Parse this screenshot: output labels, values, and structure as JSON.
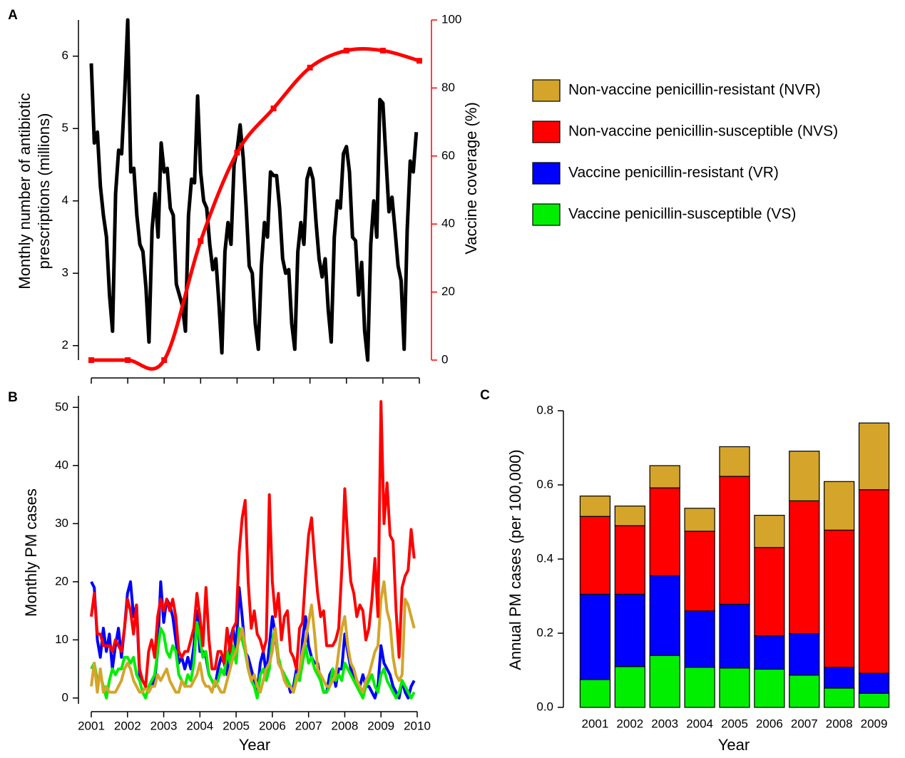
{
  "chart_data": [
    {
      "type": "line",
      "panel": "A",
      "ylabel": [
        "Monthly number of antibiotic",
        "prescriptions (millions)"
      ],
      "y2label": "Vaccine coverage (%)",
      "xlim": [
        2001,
        2010
      ],
      "xticks": [
        2001,
        2002,
        2003,
        2004,
        2005,
        2006,
        2007,
        2008,
        2009,
        2010
      ],
      "show_xtick_labels": false,
      "ylim": [
        1.8,
        6.5
      ],
      "yticks": [
        2,
        3,
        4,
        5,
        6
      ],
      "y2lim": [
        0,
        100
      ],
      "y2ticks": [
        0,
        20,
        40,
        60,
        80,
        100
      ],
      "x": [
        2001,
        2001.083,
        2001.167,
        2001.25,
        2001.333,
        2001.417,
        2001.5,
        2001.583,
        2001.667,
        2001.75,
        2001.833,
        2001.917,
        2002,
        2002.083,
        2002.167,
        2002.25,
        2002.333,
        2002.417,
        2002.5,
        2002.583,
        2002.667,
        2002.75,
        2002.833,
        2002.917,
        2003,
        2003.083,
        2003.167,
        2003.25,
        2003.333,
        2003.417,
        2003.5,
        2003.583,
        2003.667,
        2003.75,
        2003.833,
        2003.917,
        2004,
        2004.083,
        2004.167,
        2004.25,
        2004.333,
        2004.417,
        2004.5,
        2004.583,
        2004.667,
        2004.75,
        2004.833,
        2004.917,
        2005,
        2005.083,
        2005.167,
        2005.25,
        2005.333,
        2005.417,
        2005.5,
        2005.583,
        2005.667,
        2005.75,
        2005.833,
        2005.917,
        2006,
        2006.083,
        2006.167,
        2006.25,
        2006.333,
        2006.417,
        2006.5,
        2006.583,
        2006.667,
        2006.75,
        2006.833,
        2006.917,
        2007,
        2007.083,
        2007.167,
        2007.25,
        2007.333,
        2007.417,
        2007.5,
        2007.583,
        2007.667,
        2007.75,
        2007.833,
        2007.917,
        2008,
        2008.083,
        2008.167,
        2008.25,
        2008.333,
        2008.417,
        2008.5,
        2008.583,
        2008.667,
        2008.75,
        2008.833,
        2008.917,
        2009,
        2009.083,
        2009.167,
        2009.25,
        2009.333,
        2009.417,
        2009.5,
        2009.583,
        2009.667,
        2009.75,
        2009.833,
        2009.917
      ],
      "series": [
        {
          "color": "#000000",
          "values": [
            5.9,
            4.8,
            4.95,
            4.2,
            3.8,
            3.5,
            2.7,
            2.2,
            4.1,
            4.7,
            4.65,
            5.5,
            6.5,
            4.4,
            4.45,
            3.8,
            3.4,
            3.3,
            2.8,
            2.05,
            3.6,
            4.1,
            3.5,
            4.8,
            4.4,
            4.45,
            3.9,
            3.8,
            2.85,
            2.7,
            2.55,
            2.2,
            3.8,
            4.3,
            4.25,
            5.45,
            4.4,
            4.0,
            3.9,
            3.4,
            3.05,
            3.2,
            2.6,
            1.9,
            3.3,
            3.7,
            3.4,
            4.5,
            4.7,
            5.05,
            4.6,
            3.9,
            3.1,
            3.0,
            2.3,
            1.95,
            3.1,
            3.7,
            3.5,
            4.4,
            4.35,
            4.35,
            3.9,
            3.2,
            3.0,
            3.05,
            2.3,
            1.95,
            3.3,
            3.7,
            3.4,
            4.3,
            4.45,
            4.3,
            3.7,
            3.2,
            2.95,
            3.2,
            2.5,
            2.05,
            3.5,
            4.0,
            3.9,
            4.65,
            4.75,
            4.4,
            3.5,
            3.45,
            2.7,
            3.15,
            2.2,
            1.8,
            3.4,
            4.0,
            3.5,
            5.4,
            5.35,
            4.6,
            3.85,
            4.05,
            3.6,
            3.1,
            2.9,
            1.95,
            3.6,
            4.55,
            4.4,
            4.95
          ]
        },
        {
          "color": "#ff0000",
          "axis": "y2",
          "smooth": true,
          "markers": true,
          "x": [
            2001,
            2002,
            2003,
            2004,
            2005,
            2006,
            2007,
            2008,
            2009,
            2010
          ],
          "values": [
            0,
            0,
            0,
            35,
            61,
            74,
            86,
            91,
            91,
            88
          ]
        }
      ]
    },
    {
      "type": "line",
      "panel": "B",
      "xlabel": "Year",
      "ylabel": "Monthly PM cases",
      "xlim": [
        2001,
        2010
      ],
      "xticks": [
        2001,
        2002,
        2003,
        2004,
        2005,
        2006,
        2007,
        2008,
        2009,
        2010
      ],
      "ylim": [
        -1,
        52
      ],
      "yticks": [
        0,
        10,
        20,
        30,
        40,
        50
      ],
      "x": [
        2001,
        2001.083,
        2001.167,
        2001.25,
        2001.333,
        2001.417,
        2001.5,
        2001.583,
        2001.667,
        2001.75,
        2001.833,
        2001.917,
        2002,
        2002.083,
        2002.167,
        2002.25,
        2002.333,
        2002.417,
        2002.5,
        2002.583,
        2002.667,
        2002.75,
        2002.833,
        2002.917,
        2003,
        2003.083,
        2003.167,
        2003.25,
        2003.333,
        2003.417,
        2003.5,
        2003.583,
        2003.667,
        2003.75,
        2003.833,
        2003.917,
        2004,
        2004.083,
        2004.167,
        2004.25,
        2004.333,
        2004.417,
        2004.5,
        2004.583,
        2004.667,
        2004.75,
        2004.833,
        2004.917,
        2005,
        2005.083,
        2005.167,
        2005.25,
        2005.333,
        2005.417,
        2005.5,
        2005.583,
        2005.667,
        2005.75,
        2005.833,
        2005.917,
        2006,
        2006.083,
        2006.167,
        2006.25,
        2006.333,
        2006.417,
        2006.5,
        2006.583,
        2006.667,
        2006.75,
        2006.833,
        2006.917,
        2007,
        2007.083,
        2007.167,
        2007.25,
        2007.333,
        2007.417,
        2007.5,
        2007.583,
        2007.667,
        2007.75,
        2007.833,
        2007.917,
        2008,
        2008.083,
        2008.167,
        2008.25,
        2008.333,
        2008.417,
        2008.5,
        2008.583,
        2008.667,
        2008.75,
        2008.833,
        2008.917,
        2009,
        2009.083,
        2009.167,
        2009.25,
        2009.333,
        2009.417,
        2009.5,
        2009.583,
        2009.667,
        2009.75,
        2009.833,
        2009.917
      ],
      "series": [
        {
          "color": "#0000ff",
          "values": [
            20,
            19,
            10,
            7,
            12,
            8,
            11,
            5,
            9,
            12,
            7,
            12,
            18,
            20,
            14,
            16,
            4,
            3,
            2,
            1,
            2,
            3,
            8,
            20,
            13,
            17,
            16,
            14,
            10,
            6,
            7,
            5,
            7,
            5,
            9,
            15,
            8,
            8,
            7,
            4,
            3,
            2,
            5,
            7,
            6,
            4,
            10,
            12,
            8,
            19,
            14,
            8,
            7,
            5,
            3,
            1,
            6,
            8,
            4,
            9,
            14,
            11,
            6,
            5,
            4,
            3,
            1,
            2,
            5,
            3,
            10,
            14,
            9,
            7,
            6,
            6,
            3,
            1,
            1,
            4,
            5,
            2,
            5,
            5,
            11,
            8,
            5,
            4,
            3,
            2,
            4,
            2,
            2,
            1,
            0,
            2,
            9,
            6,
            5,
            4,
            2,
            1,
            0,
            3,
            1,
            0,
            2,
            3
          ]
        },
        {
          "color": "#00ee00",
          "values": [
            5,
            6,
            3,
            4,
            2,
            0,
            3,
            5,
            4,
            5,
            5,
            7,
            7,
            6,
            7,
            4,
            3,
            1,
            0,
            2,
            3,
            4,
            8,
            12,
            11,
            8,
            7,
            9,
            8,
            4,
            3,
            2,
            4,
            3,
            6,
            13,
            10,
            7,
            8,
            4,
            3,
            2,
            3,
            5,
            4,
            8,
            6,
            9,
            6,
            12,
            10,
            8,
            5,
            3,
            2,
            0,
            4,
            5,
            3,
            5,
            10,
            12,
            7,
            5,
            4,
            3,
            2,
            1,
            4,
            3,
            6,
            9,
            6,
            7,
            5,
            4,
            3,
            1,
            1,
            2,
            5,
            3,
            4,
            3,
            6,
            5,
            4,
            3,
            2,
            1,
            0,
            2,
            3,
            4,
            2,
            1,
            4,
            5,
            3,
            2,
            1,
            0,
            1,
            3,
            2,
            1,
            0,
            1
          ]
        },
        {
          "color": "#d4a52a",
          "values": [
            2,
            6,
            1,
            5,
            1,
            2,
            1,
            1,
            1,
            2,
            3,
            5,
            6,
            5,
            3,
            2,
            1,
            1,
            2,
            1,
            2,
            2,
            4,
            3,
            4,
            5,
            3,
            2,
            1,
            1,
            3,
            2,
            2,
            2,
            3,
            4,
            6,
            3,
            2,
            2,
            1,
            3,
            2,
            1,
            1,
            3,
            5,
            7,
            8,
            10,
            12,
            9,
            5,
            3,
            4,
            2,
            1,
            3,
            5,
            6,
            8,
            12,
            6,
            5,
            3,
            2,
            2,
            1,
            3,
            5,
            8,
            10,
            13,
            16,
            11,
            5,
            4,
            3,
            2,
            2,
            3,
            4,
            8,
            12,
            14,
            9,
            6,
            5,
            3,
            2,
            1,
            3,
            4,
            6,
            8,
            9,
            17,
            20,
            15,
            13,
            7,
            4,
            3,
            4,
            17,
            16,
            14,
            12
          ]
        },
        {
          "color": "#ff0000",
          "values": [
            14,
            18,
            11,
            11,
            9,
            9,
            9,
            8,
            10,
            9,
            8,
            12,
            17,
            15,
            11,
            16,
            5,
            3,
            2,
            8,
            10,
            7,
            14,
            17,
            15,
            17,
            15,
            17,
            14,
            8,
            7,
            8,
            8,
            10,
            12,
            18,
            14,
            9,
            19,
            10,
            5,
            5,
            8,
            8,
            6,
            12,
            8,
            12,
            13,
            25,
            31,
            34,
            20,
            12,
            15,
            11,
            10,
            8,
            10,
            35,
            20,
            14,
            18,
            10,
            14,
            15,
            8,
            7,
            5,
            12,
            13,
            21,
            28,
            31,
            24,
            18,
            14,
            15,
            9,
            9,
            9,
            10,
            12,
            22,
            36,
            27,
            20,
            18,
            14,
            16,
            15,
            10,
            12,
            17,
            24,
            14,
            51,
            30,
            37,
            28,
            27,
            15,
            7,
            19,
            21,
            22,
            29,
            24
          ]
        }
      ]
    },
    {
      "type": "stacked_bar",
      "panel": "C",
      "xlabel": "Year",
      "ylabel": "Annual PM cases (per 100,000)",
      "categories": [
        "2001",
        "2002",
        "2003",
        "2004",
        "2005",
        "2006",
        "2007",
        "2008",
        "2009"
      ],
      "ylim": [
        0,
        0.8
      ],
      "yticks": [
        {
          "value": 0,
          "label": "0.0"
        },
        0.2,
        0.4,
        0.6,
        0.8
      ],
      "legend": "top-right",
      "series": [
        {
          "name": "Vaccine penicillin-susceptible (VS)",
          "color": "#00ee00",
          "values": [
            0.075,
            0.11,
            0.14,
            0.108,
            0.106,
            0.103,
            0.087,
            0.052,
            0.038
          ]
        },
        {
          "name": "Vaccine penicillin-resistant (VR)",
          "color": "#0000ff",
          "values": [
            0.23,
            0.195,
            0.215,
            0.152,
            0.172,
            0.09,
            0.112,
            0.056,
            0.054
          ]
        },
        {
          "name": "Non-vaccine penicillin-susceptible (NVS)",
          "color": "#ff0000",
          "values": [
            0.21,
            0.185,
            0.237,
            0.215,
            0.345,
            0.238,
            0.358,
            0.37,
            0.495
          ]
        },
        {
          "name": "Non-vaccine penicillin-resistant (NVR)",
          "color": "#d4a52a",
          "values": [
            0.055,
            0.053,
            0.06,
            0.062,
            0.08,
            0.087,
            0.134,
            0.131,
            0.18
          ]
        }
      ]
    }
  ]
}
